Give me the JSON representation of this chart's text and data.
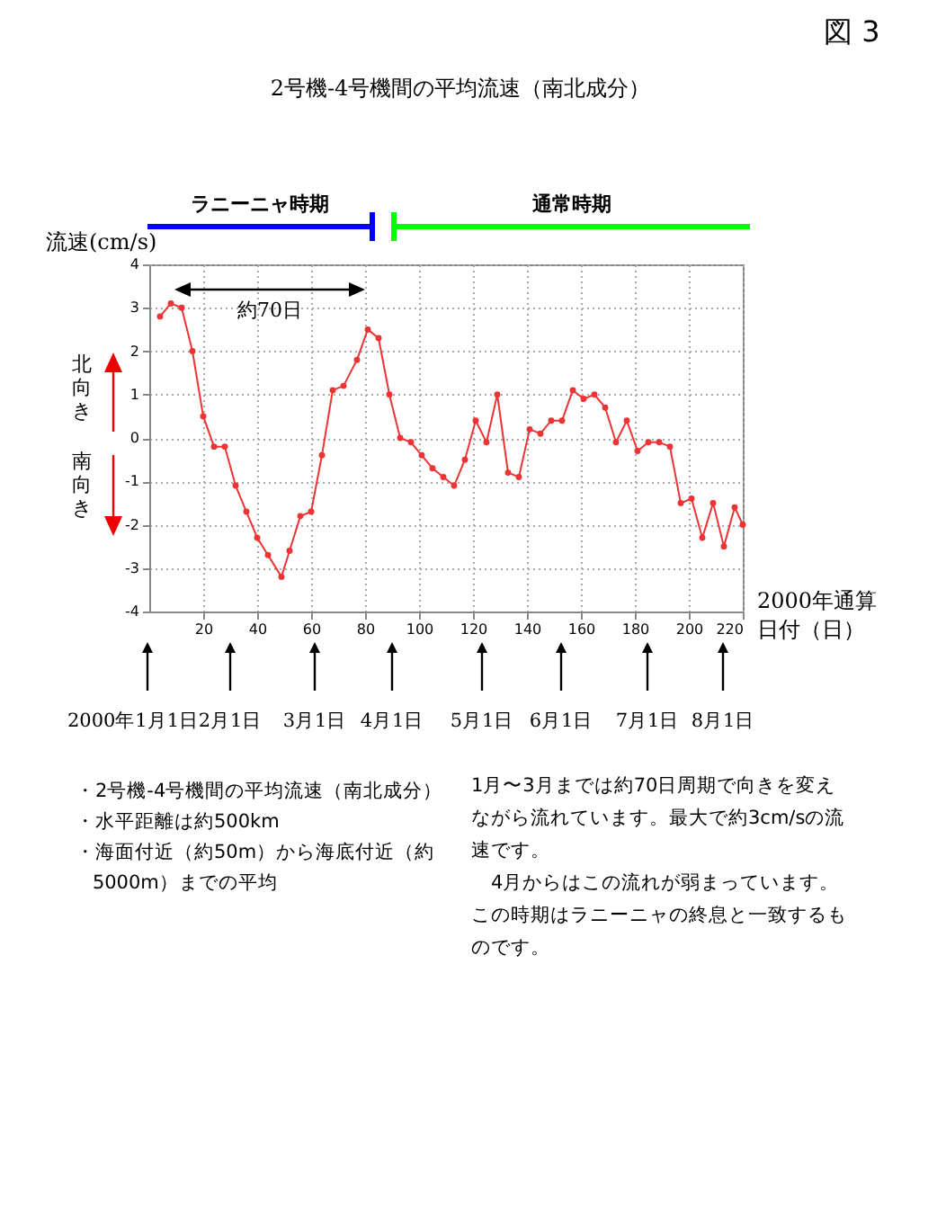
{
  "chart_data": {
    "type": "line",
    "title": "2号機-4号機間の平均流速（南北成分）",
    "xlabel": "2000年通算日付（日）",
    "ylabel": "流速(cm/s)",
    "x": [
      4,
      8,
      12,
      16,
      20,
      24,
      28,
      32,
      36,
      40,
      44,
      49,
      52,
      56,
      60,
      64,
      68,
      72,
      77,
      81,
      85,
      89,
      93,
      97,
      101,
      105,
      109,
      113,
      117,
      121,
      125,
      129,
      133,
      137,
      141,
      145,
      149,
      153,
      157,
      161,
      165,
      169,
      173,
      177,
      181,
      185,
      189,
      193,
      197,
      201,
      205,
      209,
      213,
      217,
      220
    ],
    "series": [
      {
        "color": "#ee3333",
        "values": [
          2.8,
          3.1,
          3.0,
          2.0,
          0.5,
          -0.2,
          -0.2,
          -1.1,
          -1.7,
          -2.3,
          -2.7,
          -3.2,
          -2.6,
          -1.8,
          -1.7,
          -0.4,
          1.1,
          1.2,
          1.8,
          2.5,
          2.3,
          1.0,
          0.0,
          -0.1,
          -0.4,
          -0.7,
          -0.9,
          -1.1,
          -0.5,
          0.4,
          -0.1,
          1.0,
          -0.8,
          -0.9,
          0.2,
          0.1,
          0.4,
          0.4,
          1.1,
          0.9,
          1.0,
          0.7,
          -0.1,
          0.4,
          -0.3,
          -0.1,
          -0.1,
          -0.2,
          -1.5,
          -1.4,
          -2.3,
          -1.5,
          -2.5,
          -1.6,
          -2.0
        ]
      }
    ],
    "xlim": [
      0,
      220
    ],
    "xticks": [
      20,
      40,
      60,
      80,
      100,
      120,
      140,
      160,
      180,
      200,
      220
    ],
    "ylim": [
      -4,
      4
    ],
    "yticks": [
      -4,
      -3,
      -2,
      -1,
      0,
      1,
      2,
      3,
      4
    ],
    "grid": true,
    "marker": "circle",
    "line_style": "solid",
    "annotations": [
      "図 3",
      "ラニーニャ時期",
      "通常時期",
      "北向き",
      "南向き",
      "約70日",
      "2000年1月1日",
      "2月1日",
      "3月1日",
      "4月1日",
      "5月1日",
      "6月1日",
      "7月1日",
      "8月1日",
      "・2号機-4号機間の平均流速（南北成分）",
      "・水平距離は約500km",
      "・海面付近（約50m）から海底付近（約5000m）までの平均",
      "1月〜3月までは約70日周期で向きを変えながら流れています。最大で約3cm/sの流速です。",
      "　4月からはこの流れが弱まっています。この時期はラニーニャの終息と一致するものです。"
    ]
  }
}
